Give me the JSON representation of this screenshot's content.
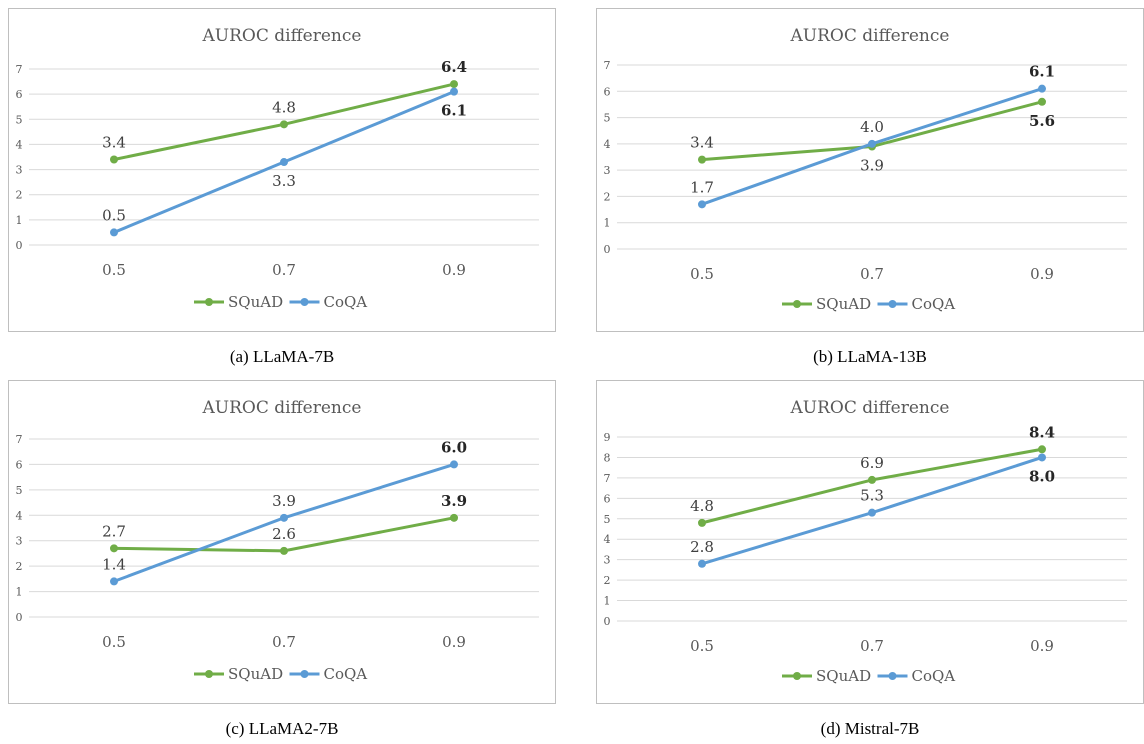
{
  "chart_data": [
    {
      "type": "line",
      "title": "AUROC difference",
      "caption": "(a) LLaMA-7B",
      "categories": [
        "0.5",
        "0.7",
        "0.9"
      ],
      "y_ticks": [
        "0",
        "1",
        "2",
        "3",
        "4",
        "5",
        "6",
        "7"
      ],
      "ylim": [
        0,
        7
      ],
      "grid": true,
      "legend_position": "bottom",
      "series": [
        {
          "name": "SQuAD",
          "color": "#70ad47",
          "values": [
            3.4,
            4.8,
            6.4
          ],
          "labels": [
            "3.4",
            "4.8",
            "6.4"
          ],
          "label_pos": [
            "above",
            "above",
            "above"
          ],
          "label_bold": [
            false,
            false,
            true
          ]
        },
        {
          "name": "CoQA",
          "color": "#5b9bd5",
          "values": [
            0.5,
            3.3,
            6.1
          ],
          "labels": [
            "0.5",
            "3.3",
            "6.1"
          ],
          "label_pos": [
            "above",
            "below",
            "below"
          ],
          "label_bold": [
            false,
            false,
            true
          ]
        }
      ]
    },
    {
      "type": "line",
      "title": "AUROC difference",
      "caption": "(b) LLaMA-13B",
      "categories": [
        "0.5",
        "0.7",
        "0.9"
      ],
      "y_ticks": [
        "0",
        "1",
        "2",
        "3",
        "4",
        "5",
        "6",
        "7"
      ],
      "ylim": [
        0,
        7
      ],
      "grid": true,
      "legend_position": "bottom",
      "series": [
        {
          "name": "SQuAD",
          "color": "#70ad47",
          "values": [
            3.4,
            3.9,
            5.6
          ],
          "labels": [
            "3.4",
            "3.9",
            "5.6"
          ],
          "label_pos": [
            "above",
            "below",
            "below"
          ],
          "label_bold": [
            false,
            false,
            true
          ]
        },
        {
          "name": "CoQA",
          "color": "#5b9bd5",
          "values": [
            1.7,
            4.0,
            6.1
          ],
          "labels": [
            "1.7",
            "4.0",
            "6.1"
          ],
          "label_pos": [
            "above",
            "above",
            "above"
          ],
          "label_bold": [
            false,
            false,
            true
          ]
        }
      ]
    },
    {
      "type": "line",
      "title": "AUROC difference",
      "caption": "(c) LLaMA2-7B",
      "categories": [
        "0.5",
        "0.7",
        "0.9"
      ],
      "y_ticks": [
        "0",
        "1",
        "2",
        "3",
        "4",
        "5",
        "6",
        "7"
      ],
      "ylim": [
        0,
        7
      ],
      "grid": true,
      "legend_position": "bottom",
      "series": [
        {
          "name": "SQuAD",
          "color": "#70ad47",
          "values": [
            2.7,
            2.6,
            3.9
          ],
          "labels": [
            "2.7",
            "2.6",
            "3.9"
          ],
          "label_pos": [
            "above",
            "above",
            "above"
          ],
          "label_bold": [
            false,
            false,
            true
          ]
        },
        {
          "name": "CoQA",
          "color": "#5b9bd5",
          "values": [
            1.4,
            3.9,
            6.0
          ],
          "labels": [
            "1.4",
            "3.9",
            "6.0"
          ],
          "label_pos": [
            "above",
            "above",
            "above"
          ],
          "label_bold": [
            false,
            false,
            true
          ]
        }
      ]
    },
    {
      "type": "line",
      "title": "AUROC difference",
      "caption": "(d) Mistral-7B",
      "categories": [
        "0.5",
        "0.7",
        "0.9"
      ],
      "y_ticks": [
        "0",
        "1",
        "2",
        "3",
        "4",
        "5",
        "6",
        "7",
        "8",
        "9"
      ],
      "ylim": [
        0,
        9
      ],
      "grid": true,
      "legend_position": "bottom",
      "series": [
        {
          "name": "SQuAD",
          "color": "#70ad47",
          "values": [
            4.8,
            6.9,
            8.4
          ],
          "labels": [
            "4.8",
            "6.9",
            "8.4"
          ],
          "label_pos": [
            "above",
            "above",
            "above"
          ],
          "label_bold": [
            false,
            false,
            true
          ]
        },
        {
          "name": "CoQA",
          "color": "#5b9bd5",
          "values": [
            2.8,
            5.3,
            8.0
          ],
          "labels": [
            "2.8",
            "5.3",
            "8.0"
          ],
          "label_pos": [
            "above",
            "above",
            "below"
          ],
          "label_bold": [
            false,
            false,
            true
          ]
        }
      ]
    }
  ]
}
